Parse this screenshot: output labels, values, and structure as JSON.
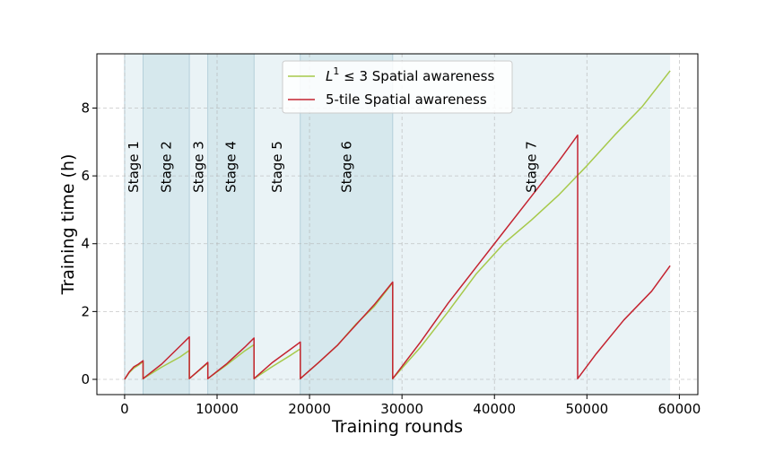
{
  "chart_data": {
    "type": "line",
    "xlabel": "Training rounds",
    "ylabel": "Training time (h)",
    "xlim": [
      -3000,
      62000
    ],
    "ylim": [
      -0.45,
      9.6
    ],
    "xticks": [
      0,
      10000,
      20000,
      30000,
      40000,
      50000,
      60000
    ],
    "yticks": [
      0,
      2,
      4,
      6,
      8
    ],
    "grid": true,
    "legend_position": "top-center",
    "stages": [
      {
        "label": "Stage 1",
        "start": 0,
        "end": 2000,
        "color": "#eaf3f6"
      },
      {
        "label": "Stage 2",
        "start": 2000,
        "end": 7000,
        "color": "#d6e8ed"
      },
      {
        "label": "Stage 3",
        "start": 7000,
        "end": 9000,
        "color": "#eaf3f6"
      },
      {
        "label": "Stage 4",
        "start": 9000,
        "end": 14000,
        "color": "#d6e8ed"
      },
      {
        "label": "Stage 5",
        "start": 14000,
        "end": 19000,
        "color": "#eaf3f6"
      },
      {
        "label": "Stage 6",
        "start": 19000,
        "end": 29000,
        "color": "#d6e8ed"
      },
      {
        "label": "Stage 7",
        "start": 29000,
        "end": 59000,
        "color": "#eaf3f6"
      }
    ],
    "series": [
      {
        "name": "$L^1 \\leq 3$ Spatial awareness",
        "legend_main": "L",
        "legend_sup": "1",
        "legend_rest": " ≤ 3 Spatial awareness",
        "color": "#a6c94a",
        "segments": [
          [
            [
              0,
              0
            ],
            [
              500,
              0.2
            ],
            [
              1000,
              0.33
            ],
            [
              1500,
              0.42
            ],
            [
              2000,
              0.52
            ]
          ],
          [
            [
              2000,
              0.02
            ],
            [
              4000,
              0.36
            ],
            [
              6000,
              0.66
            ],
            [
              7000,
              0.85
            ]
          ],
          [
            [
              7000,
              0.02
            ],
            [
              8000,
              0.25
            ],
            [
              9000,
              0.48
            ]
          ],
          [
            [
              9000,
              0.02
            ],
            [
              11000,
              0.42
            ],
            [
              13000,
              0.84
            ],
            [
              14000,
              1.02
            ]
          ],
          [
            [
              14000,
              0.02
            ],
            [
              16000,
              0.38
            ],
            [
              18000,
              0.72
            ],
            [
              19000,
              0.9
            ]
          ],
          [
            [
              19000,
              0.02
            ],
            [
              21000,
              0.5
            ],
            [
              23000,
              1.0
            ],
            [
              25000,
              1.62
            ],
            [
              27000,
              2.15
            ],
            [
              29000,
              2.85
            ]
          ],
          [
            [
              29000,
              0.02
            ],
            [
              32000,
              0.95
            ],
            [
              35000,
              2.0
            ],
            [
              38000,
              3.1
            ],
            [
              41000,
              4.0
            ],
            [
              44000,
              4.7
            ],
            [
              47000,
              5.45
            ],
            [
              50000,
              6.3
            ],
            [
              53000,
              7.2
            ],
            [
              56000,
              8.05
            ],
            [
              59000,
              9.1
            ]
          ]
        ]
      },
      {
        "name": "5-tile Spatial awareness",
        "legend_main": "5-tile Spatial awareness",
        "legend_sup": "",
        "legend_rest": "",
        "color": "#c42330",
        "segments": [
          [
            [
              0,
              0
            ],
            [
              500,
              0.22
            ],
            [
              1000,
              0.37
            ],
            [
              1500,
              0.45
            ],
            [
              2000,
              0.55
            ]
          ],
          [
            [
              2000,
              0.02
            ],
            [
              4000,
              0.45
            ],
            [
              6000,
              0.98
            ],
            [
              7000,
              1.25
            ]
          ],
          [
            [
              7000,
              0.02
            ],
            [
              8000,
              0.26
            ],
            [
              9000,
              0.5
            ]
          ],
          [
            [
              9000,
              0.02
            ],
            [
              11000,
              0.45
            ],
            [
              13000,
              0.95
            ],
            [
              14000,
              1.22
            ]
          ],
          [
            [
              14000,
              0.02
            ],
            [
              16000,
              0.5
            ],
            [
              18000,
              0.9
            ],
            [
              19000,
              1.1
            ]
          ],
          [
            [
              19000,
              0.02
            ],
            [
              21000,
              0.5
            ],
            [
              23000,
              1.0
            ],
            [
              25000,
              1.6
            ],
            [
              27000,
              2.2
            ],
            [
              29000,
              2.87
            ]
          ],
          [
            [
              29000,
              0.02
            ],
            [
              32000,
              1.1
            ],
            [
              35000,
              2.25
            ],
            [
              38000,
              3.3
            ],
            [
              41000,
              4.35
            ],
            [
              44000,
              5.4
            ],
            [
              47000,
              6.45
            ],
            [
              49000,
              7.2
            ]
          ],
          [
            [
              49000,
              0.02
            ],
            [
              51000,
              0.75
            ],
            [
              54000,
              1.75
            ],
            [
              57000,
              2.6
            ],
            [
              59000,
              3.35
            ]
          ]
        ]
      }
    ]
  }
}
